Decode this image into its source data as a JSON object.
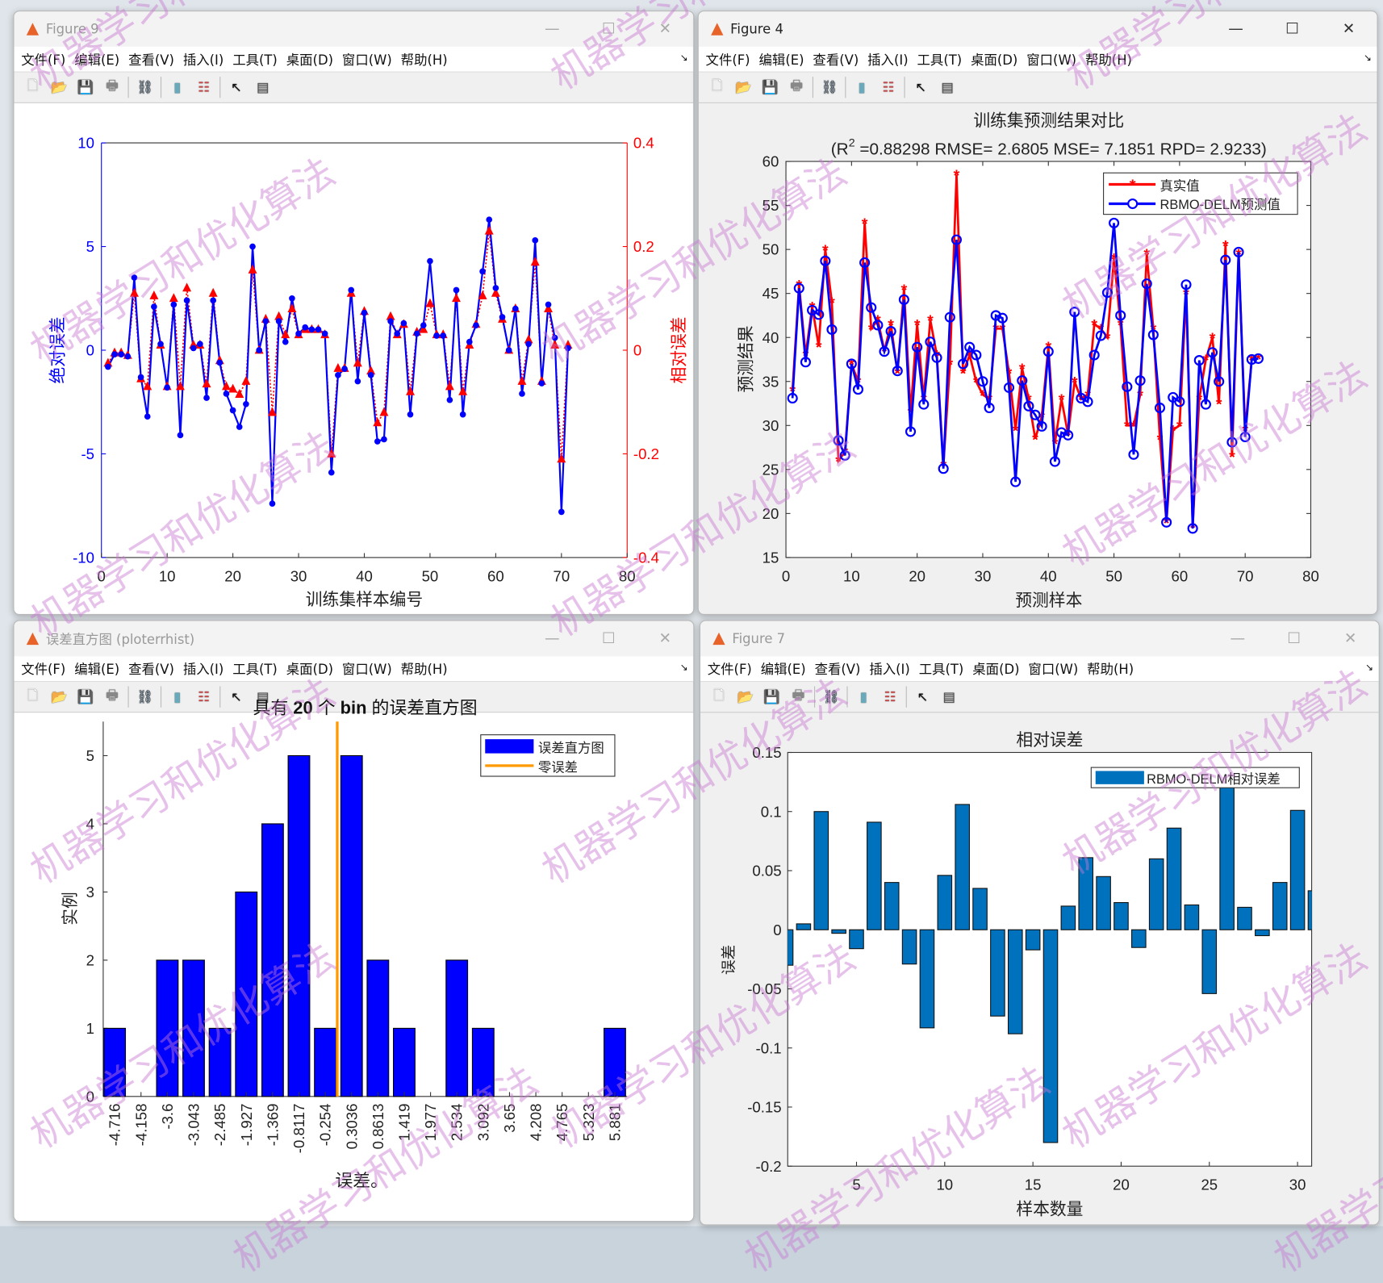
{
  "menu": [
    "文件(F)",
    "编辑(E)",
    "查看(V)",
    "插入(I)",
    "工具(T)",
    "桌面(D)",
    "窗口(W)",
    "帮助(H)"
  ],
  "toolbar_icons": [
    "new-file-icon",
    "open-folder-icon",
    "save-icon",
    "print-icon",
    "link-icon",
    "colorbar-icon",
    "legend-icon",
    "pointer-icon",
    "property-panel-icon"
  ],
  "windows": [
    {
      "title": "Figure 9",
      "active": false
    },
    {
      "title": "Figure 4",
      "active": true
    },
    {
      "title": "误差直方图 (ploterrhist)",
      "active": false
    },
    {
      "title": "Figure 7",
      "active": false
    }
  ],
  "watermark": "机器学习和优化算法",
  "chart_data": [
    {
      "type": "line",
      "name": "abs-rel-error",
      "xlabel": "训练集样本编号",
      "ylabel": "绝对误差",
      "ylabel_right": "相对误差",
      "xlim": [
        0,
        80
      ],
      "ylim": [
        -10,
        10
      ],
      "ylim_right": [
        -0.4,
        0.4
      ],
      "xticks": [
        0,
        10,
        20,
        30,
        40,
        50,
        60,
        70,
        80
      ],
      "yticks": [
        -10,
        -5,
        0,
        5,
        10
      ],
      "yticks_right": [
        -0.4,
        -0.2,
        0,
        0.2,
        0.4
      ],
      "colors": {
        "abs": "#0000ff",
        "rel": "#ff0000"
      },
      "abs_error": [
        -0.8,
        -0.2,
        -0.2,
        -0.3,
        3.5,
        -1.3,
        -3.2,
        2.1,
        0.3,
        -1.8,
        2.2,
        -4.1,
        2.4,
        0.1,
        0.3,
        -2.3,
        2.4,
        -0.6,
        -2.1,
        -2.9,
        -3.7,
        -2.6,
        5.0,
        0,
        1.4,
        -7.4,
        1.4,
        0.4,
        2.5,
        0.8,
        1.1,
        1.0,
        1.0,
        0.8,
        -5.9,
        -1.2,
        -0.9,
        2.9,
        -1.5,
        1.8,
        -1.2,
        -4.4,
        -4.3,
        1.4,
        0.8,
        1.3,
        -3.1,
        0.8,
        1.2,
        4.3,
        0.7,
        0.7,
        -2.4,
        2.9,
        -3.1,
        0.4,
        1.2,
        3.8,
        6.3,
        3.0,
        1.6,
        0,
        2.0,
        -2.1,
        0.3,
        5.3,
        -1.6,
        2.2,
        0.6,
        -7.8,
        0.1
      ],
      "rel_error": [
        -0.025,
        -0.005,
        -0.005,
        -0.01,
        0.11,
        -0.055,
        -0.07,
        0.105,
        0.01,
        -0.07,
        0.1,
        -0.07,
        0.12,
        0.01,
        0.01,
        -0.065,
        0.11,
        -0.02,
        -0.07,
        -0.075,
        -0.085,
        -0.06,
        0.155,
        0,
        0.06,
        -0.12,
        0.065,
        0.03,
        0.08,
        0.03,
        0.04,
        0.04,
        0.04,
        0.03,
        -0.2,
        -0.035,
        -0.035,
        0.11,
        -0.025,
        0.075,
        -0.04,
        -0.14,
        -0.12,
        0.065,
        0.03,
        0.05,
        -0.08,
        0.035,
        0.04,
        0.09,
        0.03,
        0.03,
        -0.07,
        0.1,
        -0.08,
        0.01,
        0.05,
        0.105,
        0.23,
        0.11,
        0.06,
        0,
        0.08,
        -0.06,
        0.02,
        0.17,
        -0.06,
        0.08,
        0.01,
        -0.21,
        0.01
      ]
    },
    {
      "type": "line",
      "name": "train-compare",
      "title": "训练集预测结果对比",
      "subtitle_pre": "(R",
      "subtitle_sup": "2",
      "subtitle_post": " =0.88298 RMSE= 2.6805 MSE= 7.1851 RPD= 2.9233)",
      "xlabel": "预测样本",
      "ylabel": "预测结果",
      "xlim": [
        0,
        80
      ],
      "ylim": [
        15,
        60
      ],
      "xticks": [
        0,
        10,
        20,
        30,
        40,
        50,
        60,
        70,
        80
      ],
      "yticks": [
        15,
        20,
        25,
        30,
        35,
        40,
        45,
        50,
        55,
        60
      ],
      "legend": [
        "真实值",
        "RBMO-DELM预测值"
      ],
      "legend_position": "top-right",
      "series": [
        {
          "name": "真实值",
          "color": "#ff0000",
          "values": [
            34,
            46,
            38,
            43.5,
            39,
            50,
            44,
            26,
            27,
            37,
            35,
            53,
            41,
            42,
            38.5,
            41.5,
            36,
            45.5,
            31.5,
            41.5,
            33,
            42,
            38,
            25.5,
            37,
            58.5,
            36,
            38,
            35,
            33.5,
            33,
            41,
            41,
            36,
            29.5,
            36.5,
            33,
            28.5,
            31,
            39,
            28,
            33,
            29,
            35,
            33,
            33.5,
            41.5,
            41,
            40,
            49,
            41.5,
            30,
            30,
            33.5,
            49.5,
            41,
            28.5,
            19,
            29.5,
            30,
            45,
            18.5,
            33,
            37.5,
            40,
            32.5,
            50.5,
            26.5,
            49.5,
            29.5,
            37.5,
            37.6
          ]
        },
        {
          "name": "RBMO-DELM预测值",
          "color": "#0000ff",
          "values": [
            33.1,
            45.6,
            37.2,
            43.1,
            42.6,
            48.7,
            40.9,
            28.3,
            26.6,
            37,
            34.1,
            48.5,
            43.4,
            41.4,
            38.4,
            40.7,
            36.2,
            44.3,
            29.3,
            38.9,
            32.4,
            39.5,
            37.7,
            25.1,
            42.3,
            51.1,
            37,
            38.9,
            38,
            35,
            32,
            42.5,
            42.2,
            34.3,
            23.6,
            35.1,
            32.2,
            31.2,
            29.9,
            38.4,
            25.9,
            29.2,
            28.9,
            42.9,
            33.1,
            32.7,
            38,
            40.2,
            45.1,
            53,
            42.5,
            34.4,
            26.7,
            35.1,
            46.1,
            40.3,
            32,
            19,
            33.2,
            32.7,
            46,
            18.3,
            37.4,
            32.4,
            38.3,
            35,
            48.8,
            28.1,
            49.7,
            28.7,
            37.5,
            37.6
          ]
        }
      ]
    },
    {
      "type": "bar",
      "name": "error-histogram",
      "title_a": "具有 ",
      "title_b": "20",
      "title_c": " 个 ",
      "title_d": "bin",
      "title_e": " 的误差直方图",
      "xlabel": "误差。",
      "ylabel": "实例",
      "categories": [
        "-4.716",
        "-4.158",
        "-3.6",
        "-3.043",
        "-2.485",
        "-1.927",
        "-1.369",
        "-0.8117",
        "-0.254",
        "0.3036",
        "0.8613",
        "1.419",
        "1.977",
        "2.534",
        "3.092",
        "3.65",
        "4.208",
        "4.765",
        "5.323",
        "5.881"
      ],
      "values": [
        1,
        0,
        2,
        2,
        1,
        3,
        4,
        5,
        1,
        5,
        2,
        1,
        0,
        2,
        1,
        0,
        0,
        0,
        0,
        1
      ],
      "ylim": [
        0,
        5.5
      ],
      "yticks": [
        0,
        1,
        2,
        3,
        4,
        5
      ],
      "zero_error": 0,
      "legend": [
        "误差直方图",
        "零误差"
      ],
      "legend_position": "top-right",
      "colors": {
        "bar": "#0000ff",
        "zero": "#ff9900"
      }
    },
    {
      "type": "bar",
      "name": "relative-error-bars",
      "title": "相对误差",
      "xlabel": "样本数量",
      "ylabel": "误差",
      "legend": [
        "RBMO-DELM相对误差"
      ],
      "legend_position": "top-right",
      "xlim": [
        1.1,
        30.8
      ],
      "ylim": [
        -0.2,
        0.15
      ],
      "xticks": [
        5,
        10,
        15,
        20,
        25,
        30
      ],
      "yticks": [
        -0.2,
        -0.15,
        -0.1,
        -0.05,
        0,
        0.05,
        0.1,
        0.15
      ],
      "yticklabels": [
        "-0.2",
        "-0.15",
        "-0.1",
        "-0.05",
        "0",
        "0.05",
        "0.1",
        "0.15"
      ],
      "color": "#0072bd",
      "x": [
        1,
        2,
        3,
        4,
        5,
        6,
        7,
        8,
        9,
        10,
        11,
        12,
        13,
        14,
        15,
        16,
        17,
        18,
        19,
        20,
        21,
        22,
        23,
        24,
        25,
        26,
        27,
        28,
        29,
        30,
        31
      ],
      "values": [
        -0.03,
        0.005,
        0.1,
        -0.003,
        -0.016,
        0.091,
        0.04,
        -0.029,
        -0.083,
        0.046,
        0.106,
        0.035,
        -0.073,
        -0.088,
        -0.017,
        -0.18,
        0.02,
        0.061,
        0.045,
        0.023,
        -0.015,
        0.06,
        0.086,
        0.021,
        -0.054,
        0.13,
        0.019,
        -0.005,
        0.04,
        0.101,
        0.033
      ]
    }
  ]
}
